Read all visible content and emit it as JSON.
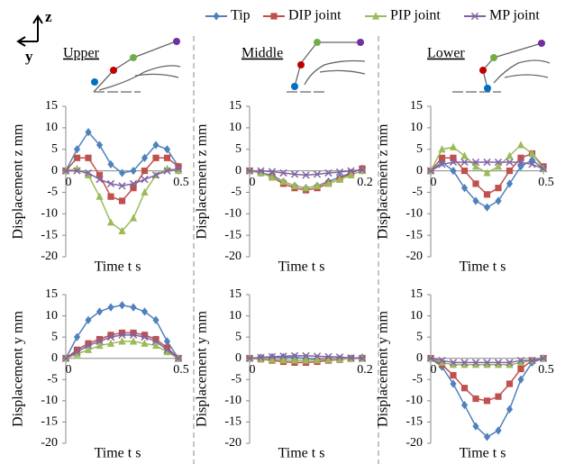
{
  "column_labels": [
    "Upper",
    "Middle",
    "Lower"
  ],
  "axis_glyph": {
    "up": "z",
    "left": "y"
  },
  "chart_data": [
    {
      "type": "line",
      "x_label": "Time t s",
      "y_label": "Displacement z mm",
      "x": [
        0,
        0.05,
        0.1,
        0.15,
        0.2,
        0.25,
        0.3,
        0.35,
        0.4,
        0.45,
        0.5
      ],
      "xlim": [
        0,
        0.5
      ],
      "xticks": [
        0,
        0.5
      ],
      "ylim": [
        -20,
        15
      ],
      "yticks": [
        15,
        10,
        5,
        0,
        -5,
        -10,
        -15,
        -20
      ],
      "series": [
        {
          "name": "Tip",
          "color": "#4f81bd",
          "marker": "diamond",
          "values": [
            0,
            5,
            9,
            6,
            1.5,
            -0.5,
            0,
            3,
            6,
            5,
            1
          ]
        },
        {
          "name": "DIP joint",
          "color": "#c0504d",
          "marker": "square",
          "values": [
            0,
            3,
            3,
            -1,
            -6,
            -7,
            -4,
            0,
            3,
            3,
            1
          ]
        },
        {
          "name": "PIP joint",
          "color": "#9bbb59",
          "marker": "triangle",
          "values": [
            0,
            0.5,
            -1,
            -6,
            -12,
            -14,
            -11,
            -5,
            -1,
            0.5,
            0
          ]
        },
        {
          "name": "MP joint",
          "color": "#8064a2",
          "marker": "cross",
          "values": [
            0,
            0,
            -0.5,
            -2,
            -3,
            -3.5,
            -3,
            -2,
            -1,
            0,
            0.5
          ]
        }
      ]
    },
    {
      "type": "line",
      "x_label": "Time t s",
      "y_label": "Displacement z mm",
      "x": [
        0,
        0.02,
        0.04,
        0.06,
        0.08,
        0.1,
        0.12,
        0.14,
        0.16,
        0.18,
        0.2
      ],
      "xlim": [
        0,
        0.2
      ],
      "xticks": [
        0,
        0.2
      ],
      "ylim": [
        -20,
        15
      ],
      "yticks": [
        15,
        10,
        5,
        0,
        -5,
        -10,
        -15,
        -20
      ],
      "series": [
        {
          "color": "#4f81bd",
          "marker": "diamond",
          "values": [
            0,
            -0.5,
            -1,
            -2.5,
            -3.5,
            -4,
            -3.5,
            -2.5,
            -1.5,
            -0.5,
            0.5
          ]
        },
        {
          "color": "#c0504d",
          "marker": "square",
          "values": [
            0,
            -0.5,
            -1.5,
            -3,
            -4,
            -4.5,
            -4,
            -3,
            -2,
            -0.5,
            0.5
          ]
        },
        {
          "color": "#9bbb59",
          "marker": "triangle",
          "values": [
            0,
            -0.5,
            -1.5,
            -2.5,
            -3.5,
            -4,
            -3.5,
            -3,
            -2,
            -1,
            0
          ]
        },
        {
          "color": "#8064a2",
          "marker": "cross",
          "values": [
            0,
            0,
            -0.2,
            -0.5,
            -0.8,
            -1,
            -0.8,
            -0.5,
            -0.3,
            0,
            0.2
          ]
        }
      ]
    },
    {
      "type": "line",
      "x_label": "Time t s",
      "y_label": "Displacement z mm",
      "x": [
        0,
        0.05,
        0.1,
        0.15,
        0.2,
        0.25,
        0.3,
        0.35,
        0.4,
        0.45,
        0.5
      ],
      "xlim": [
        0,
        0.5
      ],
      "xticks": [
        0,
        0.5
      ],
      "ylim": [
        -20,
        15
      ],
      "yticks": [
        15,
        10,
        5,
        0,
        -5,
        -10,
        -15,
        -20
      ],
      "series": [
        {
          "color": "#4f81bd",
          "marker": "diamond",
          "values": [
            0,
            2,
            0,
            -4,
            -7,
            -8.5,
            -7,
            -3,
            1,
            2.5,
            0.5
          ]
        },
        {
          "color": "#c0504d",
          "marker": "square",
          "values": [
            0,
            3,
            3,
            0,
            -3,
            -5.5,
            -4,
            0,
            3,
            4,
            1
          ]
        },
        {
          "color": "#9bbb59",
          "marker": "triangle",
          "values": [
            0,
            5,
            5.5,
            3.5,
            1,
            -0.5,
            1,
            3.5,
            6,
            4,
            0.5
          ]
        },
        {
          "color": "#8064a2",
          "marker": "cross",
          "values": [
            0,
            1.5,
            2,
            2,
            2,
            2,
            2,
            2,
            2,
            1.5,
            0.5
          ]
        }
      ]
    },
    {
      "type": "line",
      "x_label": "Time t s",
      "y_label": "Displacement y mm",
      "x": [
        0,
        0.05,
        0.1,
        0.15,
        0.2,
        0.25,
        0.3,
        0.35,
        0.4,
        0.45,
        0.5
      ],
      "xlim": [
        0,
        0.5
      ],
      "xticks": [
        0,
        0.5
      ],
      "ylim": [
        -20,
        15
      ],
      "yticks": [
        15,
        10,
        5,
        0,
        -5,
        -10,
        -15,
        -20
      ],
      "series": [
        {
          "color": "#4f81bd",
          "marker": "diamond",
          "values": [
            0,
            5,
            9,
            11,
            12,
            12.5,
            12,
            11,
            9,
            4,
            0
          ]
        },
        {
          "color": "#c0504d",
          "marker": "square",
          "values": [
            0,
            2,
            3.5,
            4.5,
            5.5,
            6,
            6,
            5.5,
            4.5,
            2.5,
            0
          ]
        },
        {
          "color": "#9bbb59",
          "marker": "triangle",
          "values": [
            0,
            1,
            2,
            3,
            3.5,
            4,
            4,
            3.5,
            3,
            1.5,
            0
          ]
        },
        {
          "color": "#8064a2",
          "marker": "cross",
          "values": [
            0,
            1.5,
            3,
            4,
            5,
            5.5,
            5.5,
            5,
            4,
            2,
            0
          ]
        }
      ]
    },
    {
      "type": "line",
      "x_label": "Time t s",
      "y_label": "Displacement y mm",
      "x": [
        0,
        0.02,
        0.04,
        0.06,
        0.08,
        0.1,
        0.12,
        0.14,
        0.16,
        0.18,
        0.2
      ],
      "xlim": [
        0,
        0.2
      ],
      "xticks": [
        0,
        0.2
      ],
      "ylim": [
        -20,
        15
      ],
      "yticks": [
        15,
        10,
        5,
        0,
        -5,
        -10,
        -15,
        -20
      ],
      "series": [
        {
          "color": "#4f81bd",
          "marker": "diamond",
          "values": [
            0,
            0.2,
            0.3,
            0.3,
            0.2,
            0,
            -0.2,
            -0.3,
            -0.2,
            0,
            0.2
          ]
        },
        {
          "color": "#c0504d",
          "marker": "square",
          "values": [
            0,
            -0.2,
            -0.5,
            -0.8,
            -1,
            -1,
            -0.8,
            -0.5,
            -0.3,
            0,
            0
          ]
        },
        {
          "color": "#9bbb59",
          "marker": "triangle",
          "values": [
            0,
            -0.1,
            -0.3,
            -0.4,
            -0.5,
            -0.5,
            -0.4,
            -0.3,
            -0.2,
            -0.1,
            0
          ]
        },
        {
          "color": "#8064a2",
          "marker": "cross",
          "values": [
            0,
            0.2,
            0.4,
            0.5,
            0.6,
            0.6,
            0.5,
            0.4,
            0.3,
            0.1,
            0
          ]
        }
      ]
    },
    {
      "type": "line",
      "x_label": "Time t s",
      "y_label": "Displacement y mm",
      "x": [
        0,
        0.05,
        0.1,
        0.15,
        0.2,
        0.25,
        0.3,
        0.35,
        0.4,
        0.45,
        0.5
      ],
      "xlim": [
        0,
        0.5
      ],
      "xticks": [
        0,
        0.5
      ],
      "ylim": [
        -20,
        15
      ],
      "yticks": [
        15,
        10,
        5,
        0,
        -5,
        -10,
        -15,
        -20
      ],
      "series": [
        {
          "color": "#4f81bd",
          "marker": "diamond",
          "values": [
            0,
            -2,
            -6,
            -11,
            -16,
            -18.5,
            -17,
            -12,
            -5,
            -1,
            0
          ]
        },
        {
          "color": "#c0504d",
          "marker": "square",
          "values": [
            0,
            -1.5,
            -4,
            -7,
            -9.5,
            -10,
            -9,
            -6,
            -2.5,
            -0.5,
            0
          ]
        },
        {
          "color": "#9bbb59",
          "marker": "triangle",
          "values": [
            0,
            -1,
            -1.5,
            -1.5,
            -1.5,
            -1.5,
            -1.5,
            -1.5,
            -1,
            -0.5,
            0
          ]
        },
        {
          "color": "#8064a2",
          "marker": "cross",
          "values": [
            0,
            -0.5,
            -1,
            -1,
            -1,
            -1,
            -1,
            -1,
            -0.5,
            -0.5,
            0
          ]
        }
      ]
    }
  ]
}
